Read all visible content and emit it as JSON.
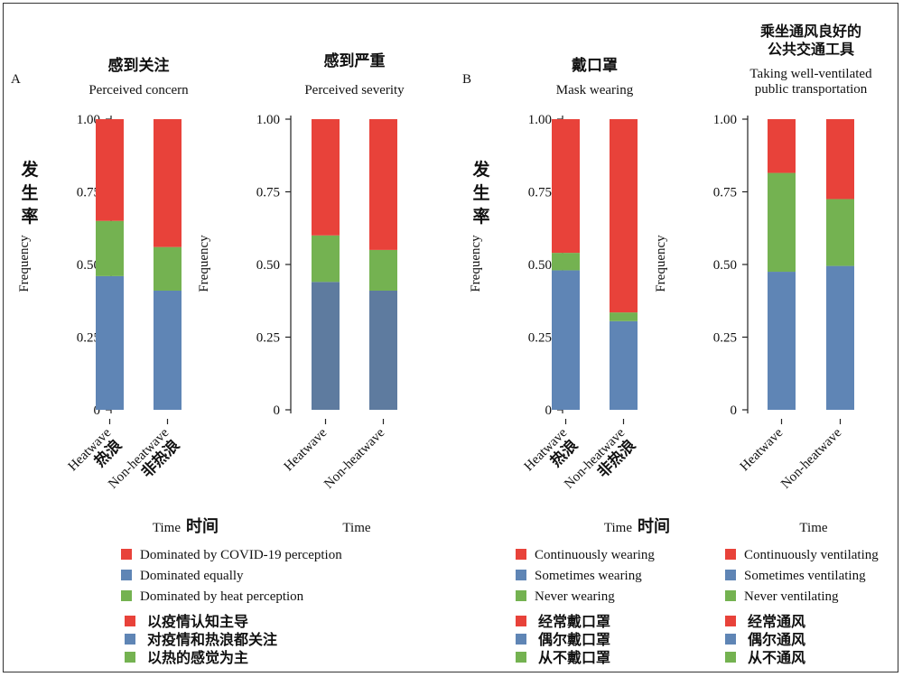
{
  "colors": {
    "red": "#e8423a",
    "blue": "#5f85b5",
    "blue_dark": "#5e7b9f",
    "green": "#74b251"
  },
  "panel_labels": {
    "a": "A",
    "b": "B"
  },
  "ylabel_cn": "发生率",
  "chart_data": [
    {
      "type": "bar",
      "stacked": true,
      "title_cn": "感到关注",
      "title": "Perceived concern",
      "categories": [
        "Heatwave",
        "Non-heatwave"
      ],
      "categories_cn": [
        "热浪",
        "非热浪"
      ],
      "xlabel": "Time",
      "xlabel_cn": "时间",
      "ylabel": "Frequency",
      "ylim": [
        0,
        1
      ],
      "yticks": [
        "0",
        "0.25",
        "0.50",
        "0.75",
        "1.00"
      ],
      "series": [
        {
          "color": "blue",
          "values": [
            0.46,
            0.41
          ]
        },
        {
          "color": "green",
          "values": [
            0.19,
            0.15
          ]
        },
        {
          "color": "red",
          "values": [
            0.35,
            0.44
          ]
        }
      ]
    },
    {
      "type": "bar",
      "stacked": true,
      "title_cn": "感到严重",
      "title": "Perceived severity",
      "categories": [
        "Heatwave",
        "Non-heatwave"
      ],
      "xlabel": "Time",
      "ylabel": "Frequency",
      "ylim": [
        0,
        1
      ],
      "yticks": [
        "0",
        "0.25",
        "0.50",
        "0.75",
        "1.00"
      ],
      "series": [
        {
          "color": "blue_dark",
          "values": [
            0.44,
            0.41
          ]
        },
        {
          "color": "green",
          "values": [
            0.16,
            0.14
          ]
        },
        {
          "color": "red",
          "values": [
            0.4,
            0.45
          ]
        }
      ]
    },
    {
      "type": "bar",
      "stacked": true,
      "title_cn": "戴口罩",
      "title": "Mask wearing",
      "categories": [
        "Heatwave",
        "Non-heatwave"
      ],
      "categories_cn": [
        "热浪",
        "非热浪"
      ],
      "xlabel": "Time",
      "xlabel_cn": "时间",
      "ylabel": "Frequency",
      "ylim": [
        0,
        1
      ],
      "yticks": [
        "0",
        "0.25",
        "0.50",
        "0.75",
        "1.00"
      ],
      "series": [
        {
          "color": "blue",
          "values": [
            0.48,
            0.305
          ]
        },
        {
          "color": "green",
          "values": [
            0.06,
            0.03
          ]
        },
        {
          "color": "red",
          "values": [
            0.46,
            0.665
          ]
        }
      ]
    },
    {
      "type": "bar",
      "stacked": true,
      "title_cn": "乘坐通风良好的\n公共交通工具",
      "title": "Taking well-ventilated\npublic transportation",
      "categories": [
        "Heatwave",
        "Non-heatwave"
      ],
      "xlabel": "Time",
      "ylabel": "Frequency",
      "ylim": [
        0,
        1
      ],
      "yticks": [
        "0",
        "0.25",
        "0.50",
        "0.75",
        "1.00"
      ],
      "series": [
        {
          "color": "blue",
          "values": [
            0.475,
            0.495
          ]
        },
        {
          "color": "green",
          "values": [
            0.34,
            0.23
          ]
        },
        {
          "color": "red",
          "values": [
            0.185,
            0.275
          ]
        }
      ]
    }
  ],
  "legends": {
    "a_en": [
      {
        "color": "red",
        "label": "Dominated by COVID-19 perception"
      },
      {
        "color": "blue",
        "label": "Dominated equally"
      },
      {
        "color": "green",
        "label": "Dominated by heat perception"
      }
    ],
    "a_cn": [
      {
        "color": "red",
        "label": "以疫情认知主导"
      },
      {
        "color": "blue",
        "label": "对疫情和热浪都关注"
      },
      {
        "color": "green",
        "label": "以热的感觉为主"
      }
    ],
    "mask_en": [
      {
        "color": "red",
        "label": "Continuously wearing"
      },
      {
        "color": "blue",
        "label": "Sometimes wearing"
      },
      {
        "color": "green",
        "label": "Never wearing"
      }
    ],
    "mask_cn": [
      {
        "color": "red",
        "label": "经常戴口罩"
      },
      {
        "color": "blue",
        "label": "偶尔戴口罩"
      },
      {
        "color": "green",
        "label": "从不戴口罩"
      }
    ],
    "vent_en": [
      {
        "color": "red",
        "label": "Continuously ventilating"
      },
      {
        "color": "blue",
        "label": "Sometimes ventilating"
      },
      {
        "color": "green",
        "label": "Never ventilating"
      }
    ],
    "vent_cn": [
      {
        "color": "red",
        "label": "经常通风"
      },
      {
        "color": "blue",
        "label": "偶尔通风"
      },
      {
        "color": "green",
        "label": "从不通风"
      }
    ]
  }
}
